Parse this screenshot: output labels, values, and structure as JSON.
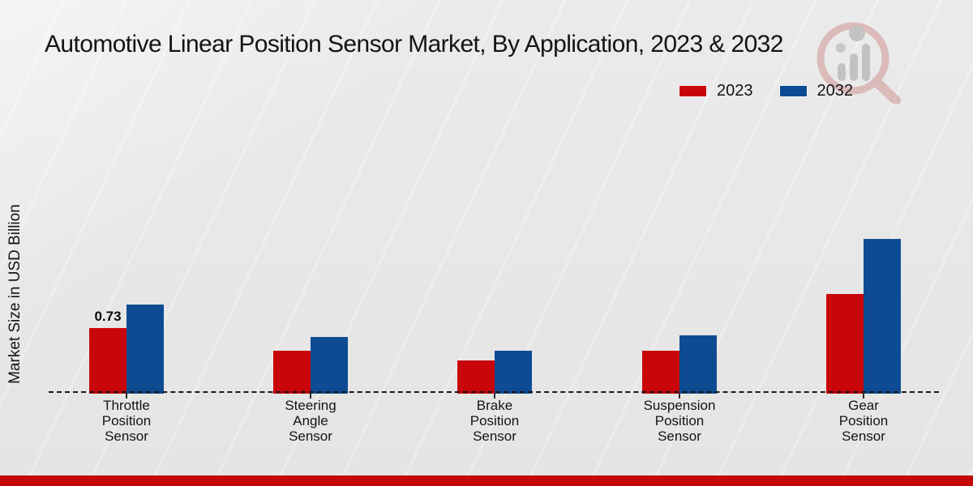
{
  "page": {
    "title": "Automotive Linear Position Sensor Market, By Application, 2023 & 2032"
  },
  "legend": {
    "items": [
      {
        "label": "2023",
        "color": "#c90609"
      },
      {
        "label": "2032",
        "color": "#0d4c92"
      }
    ]
  },
  "watermark_icon": "magnifier-bar-chart-logo",
  "colors": {
    "series_2023": "#c90609",
    "series_2032": "#0d4c92",
    "footer_bar": "#c30909",
    "axis": "#1a1a1a",
    "text": "#141414",
    "background": "#ececec"
  },
  "chart_data": {
    "type": "bar",
    "title": "Automotive Linear Position Sensor Market, By Application, 2023 & 2032",
    "categories": [
      "Throttle Position Sensor",
      "Steering Angle Sensor",
      "Brake Position Sensor",
      "Suspension Position Sensor",
      "Gear Position Sensor"
    ],
    "series": [
      {
        "name": "2023",
        "color": "#c90609",
        "values": [
          0.73,
          0.48,
          0.37,
          0.48,
          1.11
        ]
      },
      {
        "name": "2032",
        "color": "#0d4c92",
        "values": [
          0.99,
          0.63,
          0.48,
          0.65,
          1.72
        ]
      }
    ],
    "data_labels": [
      {
        "series_index": 0,
        "category_index": 0,
        "text": "0.73"
      }
    ],
    "xlabel": "",
    "ylabel": "Market Size in USD Billion",
    "ylim": [
      0,
      1.9
    ],
    "grid": false,
    "baseline_style": "dashed",
    "legend_position": "top-right"
  }
}
